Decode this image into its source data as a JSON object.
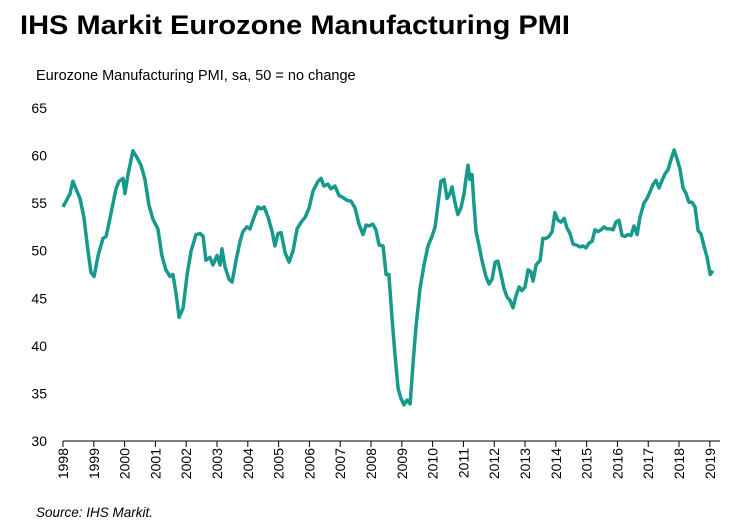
{
  "chart_data": {
    "type": "line",
    "title": "IHS Markit Eurozone Manufacturing PMI",
    "subtitle": "Eurozone Manufacturing PMI, sa, 50 = no change",
    "source": "Source: IHS Markit.",
    "x": [
      1998.0,
      1998.23,
      1998.32,
      1998.55,
      1998.68,
      1998.81,
      1998.91,
      1999.01,
      1999.14,
      1999.3,
      1999.4,
      1999.53,
      1999.72,
      1999.82,
      1999.95,
      2000.01,
      2000.11,
      2000.27,
      2000.4,
      2000.53,
      2000.66,
      2000.79,
      2000.92,
      2001.08,
      2001.21,
      2001.34,
      2001.47,
      2001.57,
      2001.67,
      2001.77,
      2001.9,
      2002.03,
      2002.16,
      2002.32,
      2002.45,
      2002.55,
      2002.64,
      2002.77,
      2002.87,
      2003.0,
      2003.1,
      2003.16,
      2003.26,
      2003.39,
      2003.49,
      2003.62,
      2003.75,
      2003.84,
      2003.97,
      2004.07,
      2004.2,
      2004.33,
      2004.43,
      2004.53,
      2004.66,
      2004.79,
      2004.88,
      2004.98,
      2005.08,
      2005.21,
      2005.34,
      2005.47,
      2005.6,
      2005.73,
      2005.86,
      2005.99,
      2006.12,
      2006.28,
      2006.38,
      2006.47,
      2006.6,
      2006.7,
      2006.83,
      2006.96,
      2007.09,
      2007.22,
      2007.35,
      2007.48,
      2007.61,
      2007.74,
      2007.84,
      2007.94,
      2008.06,
      2008.16,
      2008.26,
      2008.39,
      2008.49,
      2008.58,
      2008.68,
      2008.78,
      2008.88,
      2008.97,
      2009.07,
      2009.17,
      2009.27,
      2009.36,
      2009.46,
      2009.59,
      2009.72,
      2009.85,
      2009.98,
      2010.08,
      2010.18,
      2010.27,
      2010.37,
      2010.47,
      2010.56,
      2010.63,
      2010.73,
      2010.82,
      2010.92,
      2011.02,
      2011.08,
      2011.15,
      2011.21,
      2011.28,
      2011.34,
      2011.41,
      2011.51,
      2011.6,
      2011.73,
      2011.83,
      2011.93,
      2012.03,
      2012.12,
      2012.22,
      2012.32,
      2012.42,
      2012.51,
      2012.61,
      2012.71,
      2012.81,
      2012.9,
      2013.0,
      2013.1,
      2013.19,
      2013.26,
      2013.36,
      2013.49,
      2013.58,
      2013.68,
      2013.78,
      2013.88,
      2013.97,
      2014.07,
      2014.17,
      2014.27,
      2014.36,
      2014.46,
      2014.56,
      2014.66,
      2014.79,
      2014.88,
      2014.98,
      2015.08,
      2015.18,
      2015.27,
      2015.37,
      2015.47,
      2015.56,
      2015.66,
      2015.76,
      2015.86,
      2015.95,
      2016.05,
      2016.15,
      2016.25,
      2016.34,
      2016.44,
      2016.54,
      2016.64,
      2016.73,
      2016.86,
      2016.96,
      2017.06,
      2017.16,
      2017.25,
      2017.35,
      2017.45,
      2017.55,
      2017.64,
      2017.74,
      2017.84,
      2017.94,
      2018.03,
      2018.13,
      2018.23,
      2018.32,
      2018.42,
      2018.52,
      2018.62,
      2018.71,
      2018.81,
      2018.91,
      2019.01,
      2019.1
    ],
    "series": [
      {
        "name": "Eurozone Manufacturing PMI",
        "color": "#17998b",
        "values": [
          54.6,
          56,
          57.3,
          55.5,
          53.5,
          50,
          47.7,
          47.3,
          49.5,
          51.3,
          51.5,
          53.5,
          56.5,
          57.3,
          57.6,
          56,
          58,
          60.5,
          59.8,
          59,
          57.5,
          54.8,
          53.3,
          52.3,
          49.5,
          48,
          47.3,
          47.5,
          45.5,
          43,
          44,
          47.5,
          50,
          51.7,
          51.8,
          51.5,
          49,
          49.3,
          48.5,
          49.5,
          48.5,
          50.2,
          48.3,
          47,
          46.7,
          49,
          51,
          52,
          52.5,
          52.3,
          53.5,
          54.6,
          54.4,
          54.6,
          53.5,
          52,
          50.5,
          51.8,
          51.9,
          49.8,
          48.8,
          50,
          52.3,
          53,
          53.5,
          54.5,
          56.3,
          57.3,
          57.6,
          56.8,
          57,
          56.5,
          56.8,
          55.8,
          55.6,
          55.3,
          55.2,
          54.5,
          52.8,
          51.7,
          52.7,
          52.6,
          52.8,
          52.2,
          50.6,
          50.5,
          47.5,
          47.5,
          43,
          39,
          35.5,
          34.5,
          33.8,
          34.3,
          33.9,
          38,
          42,
          46,
          48.5,
          50.5,
          51.5,
          52.5,
          55,
          57.3,
          57.5,
          55.5,
          56,
          56.7,
          55,
          53.8,
          54.5,
          56,
          57.5,
          59,
          57.5,
          58,
          55,
          52,
          50.5,
          49,
          47.3,
          46.5,
          47,
          48.8,
          48.9,
          47.5,
          46,
          45.1,
          44.8,
          44,
          45.3,
          46.2,
          45.8,
          46.2,
          48,
          47.8,
          46.8,
          48.5,
          49,
          51.3,
          51.3,
          51.5,
          52,
          54,
          53.2,
          53,
          53.4,
          52.4,
          51.8,
          50.7,
          50.6,
          50.4,
          50.5,
          50.3,
          50.8,
          51,
          52.2,
          52,
          52.2,
          52.5,
          52.3,
          52.3,
          52.2,
          53,
          53.2,
          51.6,
          51.5,
          51.7,
          51.6,
          52.6,
          51.7,
          53.5,
          55,
          55.5,
          56.2,
          57,
          57.4,
          56.6,
          57.4,
          58.1,
          58.5,
          59.6,
          60.6,
          59.6,
          58.6,
          56.6,
          56,
          55.1,
          55.1,
          54.6,
          52.1,
          51.8,
          50.5,
          49.3,
          47.5,
          47.9
        ]
      }
    ],
    "xlim": [
      1998,
      2019.33
    ],
    "xticks": [
      1998,
      1999,
      2000,
      2001,
      2002,
      2003,
      2004,
      2005,
      2006,
      2007,
      2008,
      2009,
      2010,
      2011,
      2012,
      2013,
      2014,
      2015,
      2016,
      2017,
      2018,
      2019
    ],
    "ylim": [
      30,
      65
    ],
    "yticks": [
      30,
      35,
      40,
      45,
      50,
      55,
      60,
      65
    ],
    "grid": false
  }
}
